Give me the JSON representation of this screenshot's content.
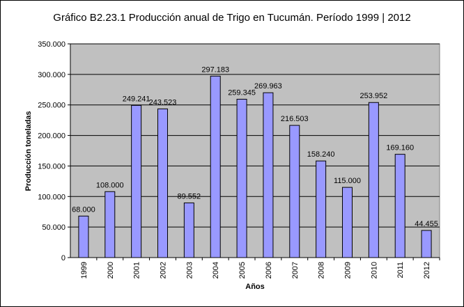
{
  "chart_data": {
    "type": "bar",
    "title": "Gráfico B2.23.1 Producción anual de Trigo en Tucumán. Período 1999 | 2012",
    "xlabel": "Años",
    "ylabel": "Producción toneladas",
    "categories": [
      "1999",
      "2000",
      "2001",
      "2002",
      "2003",
      "2004",
      "2005",
      "2006",
      "2007",
      "2008",
      "2009",
      "2010",
      "2011",
      "2012"
    ],
    "values": [
      68000,
      108000,
      249241,
      243523,
      89552,
      297183,
      259345,
      269963,
      216503,
      158240,
      115000,
      253952,
      169160,
      44455
    ],
    "value_labels": [
      "68.000",
      "108.000",
      "249.241",
      "243.523",
      "89.552",
      "297.183",
      "259.345",
      "269.963",
      "216.503",
      "158.240",
      "115.000",
      "253.952",
      "169.160",
      "44.455"
    ],
    "ylim": [
      0,
      350000
    ],
    "yticks": [
      0,
      50000,
      100000,
      150000,
      200000,
      250000,
      300000,
      350000
    ],
    "ytick_labels": [
      "0",
      "50.000",
      "100.000",
      "150.000",
      "200.000",
      "250.000",
      "300.000",
      "350.000"
    ],
    "grid": true,
    "legend": "none",
    "colors": {
      "bar_fill": "#9999ff",
      "bar_stroke": "#000000",
      "plot_bg": "#c0c0c0",
      "gridline": "#000000"
    }
  }
}
